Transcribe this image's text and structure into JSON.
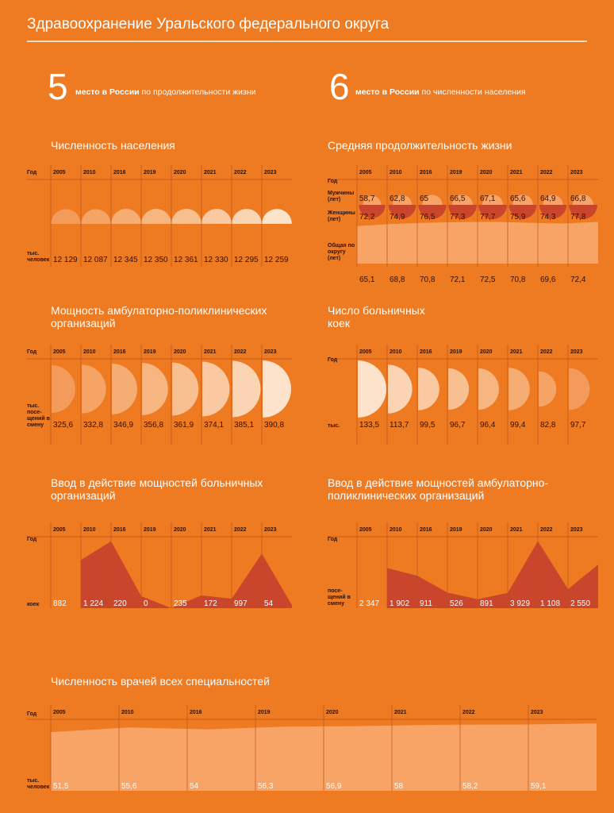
{
  "header": {
    "title": "Здравоохранение Уральского федерального округа",
    "stats": [
      {
        "rank": "5",
        "emphasis": "место в России",
        "text": "по продолжительности жизни"
      },
      {
        "rank": "6",
        "emphasis": "место в России",
        "text": "по численности населения"
      }
    ]
  },
  "chart_data": [
    {
      "type": "dome",
      "title": "Численность населения",
      "year_label": "Год",
      "categories": [
        "2005",
        "2010",
        "2016",
        "2019",
        "2020",
        "2021",
        "2022",
        "2023"
      ],
      "unit_label": "тыс. человек",
      "values": [
        12129,
        12087,
        12345,
        12350,
        12361,
        12330,
        12295,
        12259
      ],
      "value_labels": [
        "12 129",
        "12 087",
        "12 345",
        "12 350",
        "12 361",
        "12 330",
        "12 295",
        "12 259"
      ],
      "colors": [
        "#f39b5a",
        "#f5a466",
        "#f6ad73",
        "#f7b680",
        "#f8c091",
        "#fac9a1",
        "#fbd4b3",
        "#fde3cb"
      ]
    },
    {
      "type": "paired",
      "title": "Средняя продолжительность жизни",
      "year_label": "Год",
      "categories": [
        "2005",
        "2010",
        "2016",
        "2019",
        "2020",
        "2021",
        "2022",
        "2023"
      ],
      "ylim": [
        0,
        80
      ],
      "series": [
        {
          "name": "Мужчины (лет)",
          "color": "#f7a466",
          "values": [
            58.7,
            62.8,
            65,
            66.5,
            67.1,
            65.6,
            64.9,
            66.8
          ],
          "value_labels": [
            "58,7",
            "62,8",
            "65",
            "66,5",
            "67,1",
            "65,6",
            "64,9",
            "66,8"
          ]
        },
        {
          "name": "Женщины (лет)",
          "color": "#c9452b",
          "values": [
            72.2,
            74.9,
            76.5,
            77.3,
            77.7,
            75.9,
            74.3,
            77.8
          ],
          "value_labels": [
            "72,2",
            "74,9",
            "76,5",
            "77,3",
            "77,7",
            "75,9",
            "74,3",
            "77,8"
          ]
        },
        {
          "name": "Общая по округу (лет)",
          "color": "#f7a466",
          "values": [
            65.1,
            68.8,
            70.8,
            72.1,
            72.5,
            70.8,
            69.6,
            72.4
          ],
          "value_labels": [
            "65,1",
            "68,8",
            "70,8",
            "72,1",
            "72,5",
            "70,8",
            "69,6",
            "72,4"
          ]
        }
      ]
    },
    {
      "type": "half",
      "title": "Мощность амбулаторно-поликлинических организаций",
      "year_label": "Год",
      "categories": [
        "2005",
        "2010",
        "2016",
        "2019",
        "2020",
        "2021",
        "2022",
        "2023"
      ],
      "unit_label": "тыс. посе- щений в смену",
      "values": [
        325.6,
        332.8,
        346.9,
        356.8,
        361.9,
        374.1,
        385.1,
        390.8
      ],
      "value_labels": [
        "325,6",
        "332,8",
        "346,9",
        "356,8",
        "361,9",
        "374,1",
        "385,1",
        "390,8"
      ],
      "colors": [
        "#f39b5a",
        "#f5a466",
        "#f6ad73",
        "#f7b680",
        "#f8c091",
        "#fac9a1",
        "#fbd4b3",
        "#fde3cb"
      ]
    },
    {
      "type": "half",
      "title": "Число больничных коек",
      "year_label": "Год",
      "categories": [
        "2005",
        "2010",
        "2016",
        "2019",
        "2020",
        "2021",
        "2022",
        "2023"
      ],
      "unit_label": "тыс.",
      "values": [
        133.5,
        113.7,
        99.5,
        96.7,
        96.4,
        99.4,
        82.8,
        97.7
      ],
      "value_labels": [
        "133,5",
        "113,7",
        "99,5",
        "96,7",
        "96,4",
        "99,4",
        "82,8",
        "97,7"
      ],
      "colors": [
        "#fde3cb",
        "#fbd4b3",
        "#fac9a1",
        "#f8c091",
        "#f7b680",
        "#f6ad73",
        "#f5a466",
        "#f39b5a"
      ]
    },
    {
      "type": "area",
      "title": "Ввод в действие мощностей больничных организаций",
      "year_label": "Год",
      "categories": [
        "2005",
        "2010",
        "2016",
        "2019",
        "2020",
        "2021",
        "2022",
        "2023"
      ],
      "unit_label": "коек",
      "color": "#c9452b",
      "ylim": [
        0,
        1250
      ],
      "values": [
        882,
        1224,
        220,
        0,
        235,
        172,
        997,
        54
      ],
      "value_labels": [
        "882",
        "1 224",
        "220",
        "0",
        "235",
        "172",
        "997",
        "54"
      ]
    },
    {
      "type": "area",
      "title": "Ввод в действие мощностей амбулаторно-поликлинических организаций",
      "year_label": "Год",
      "categories": [
        "2005",
        "2010",
        "2016",
        "2019",
        "2020",
        "2021",
        "2022",
        "2023"
      ],
      "unit_label": "посе- щений в смену",
      "color": "#c9452b",
      "ylim": [
        0,
        4000
      ],
      "values": [
        2347,
        1902,
        911,
        526,
        891,
        3929,
        1108,
        2550
      ],
      "value_labels": [
        "2 347",
        "1 902",
        "911",
        "526",
        "891",
        "3 929",
        "1 108",
        "2 550"
      ]
    },
    {
      "type": "area",
      "title": "Численность врачей всех специальностей",
      "year_label": "Год",
      "categories": [
        "2005",
        "2010",
        "2016",
        "2019",
        "2020",
        "2021",
        "2022",
        "2023"
      ],
      "unit_label": "тыс. человек",
      "color": "#f7a466",
      "ylim": [
        0,
        60
      ],
      "values": [
        51.5,
        55.6,
        54,
        56.3,
        56.9,
        58,
        58.2,
        59.1
      ],
      "value_labels": [
        "51,5",
        "55,6",
        "54",
        "56,3",
        "56,9",
        "58",
        "58,2",
        "59,1"
      ]
    }
  ]
}
